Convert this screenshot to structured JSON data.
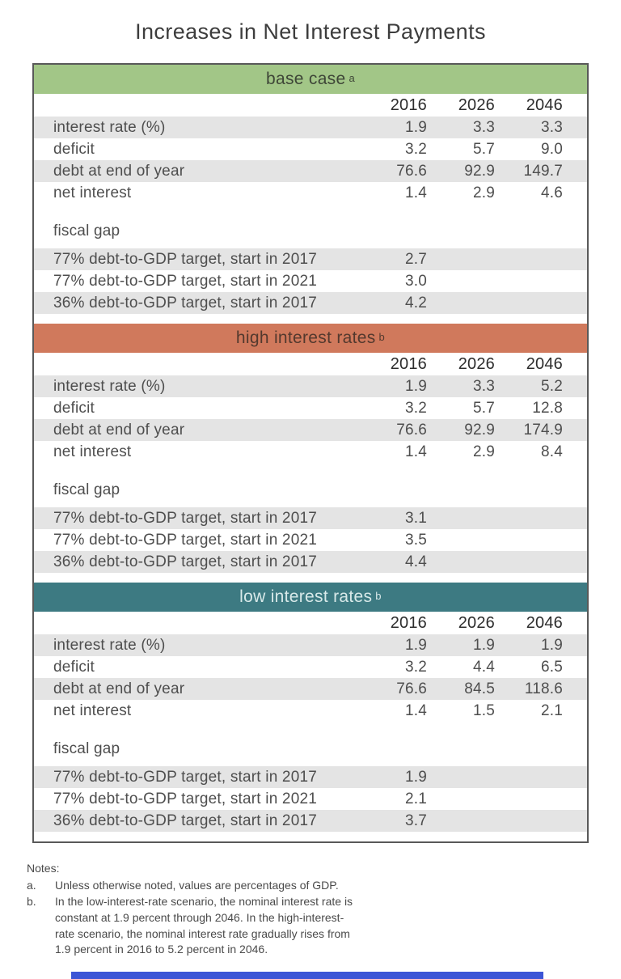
{
  "title": "Increases in Net Interest Payments",
  "years": [
    "2016",
    "2026",
    "2046"
  ],
  "chart_data": {
    "type": "table",
    "title": "Increases in Net Interest Payments",
    "columns": [
      "",
      "2016",
      "2026",
      "2046"
    ],
    "sections": [
      {
        "header": "base case",
        "note_ref": "a",
        "header_bg": "#a2c687",
        "header_text_color": "#3e4637",
        "rows": [
          {
            "label": "interest rate (%)",
            "values": [
              "1.9",
              "3.3",
              "3.3"
            ]
          },
          {
            "label": "deficit",
            "values": [
              "3.2",
              "5.7",
              "9.0"
            ]
          },
          {
            "label": "debt at end of year",
            "values": [
              "76.6",
              "92.9",
              "149.7"
            ]
          },
          {
            "label": "net interest",
            "values": [
              "1.4",
              "2.9",
              "4.6"
            ]
          }
        ],
        "fiscal_gap_label": "fiscal gap",
        "fiscal_gap_rows": [
          {
            "label": "77% debt-to-GDP target, start in 2017",
            "value": "2.7"
          },
          {
            "label": "77% debt-to-GDP target, start in 2021",
            "value": "3.0"
          },
          {
            "label": "36% debt-to-GDP target, start in 2017",
            "value": "4.2"
          }
        ]
      },
      {
        "header": "high interest rates",
        "note_ref": "b",
        "header_bg": "#d0795c",
        "header_text_color": "#53392e",
        "rows": [
          {
            "label": "interest rate (%)",
            "values": [
              "1.9",
              "3.3",
              "5.2"
            ]
          },
          {
            "label": "deficit",
            "values": [
              "3.2",
              "5.7",
              "12.8"
            ]
          },
          {
            "label": "debt at end of year",
            "values": [
              "76.6",
              "92.9",
              "174.9"
            ]
          },
          {
            "label": "net interest",
            "values": [
              "1.4",
              "2.9",
              "8.4"
            ]
          }
        ],
        "fiscal_gap_label": "fiscal gap",
        "fiscal_gap_rows": [
          {
            "label": "77% debt-to-GDP target, start in 2017",
            "value": "3.1"
          },
          {
            "label": "77% debt-to-GDP target, start in 2021",
            "value": "3.5"
          },
          {
            "label": "36% debt-to-GDP target, start in 2017",
            "value": "4.4"
          }
        ]
      },
      {
        "header": "low interest rates",
        "note_ref": "b",
        "header_bg": "#3d7a82",
        "header_text_color": "#d8e9e9",
        "rows": [
          {
            "label": "interest rate (%)",
            "values": [
              "1.9",
              "1.9",
              "1.9"
            ]
          },
          {
            "label": "deficit",
            "values": [
              "3.2",
              "4.4",
              "6.5"
            ]
          },
          {
            "label": "debt at end of year",
            "values": [
              "76.6",
              "84.5",
              "118.6"
            ]
          },
          {
            "label": "net interest",
            "values": [
              "1.4",
              "1.5",
              "2.1"
            ]
          }
        ],
        "fiscal_gap_label": "fiscal gap",
        "fiscal_gap_rows": [
          {
            "label": "77% debt-to-GDP target, start in 2017",
            "value": "1.9"
          },
          {
            "label": "77% debt-to-GDP target, start in 2021",
            "value": "2.1"
          },
          {
            "label": "36% debt-to-GDP target, start in 2017",
            "value": "3.7"
          }
        ]
      }
    ]
  },
  "notes": {
    "heading": "Notes:",
    "items": [
      {
        "marker": "a.",
        "text": "Unless otherwise noted, values are percentages of GDP."
      },
      {
        "marker": "b.",
        "text": "In the low-interest-rate scenario, the nominal interest rate is constant at 1.9 percent through 2046. In the high-interest-rate scenario, the nominal interest rate gradually rises from 1.9 percent in 2016 to 5.2 percent in 2046."
      }
    ]
  },
  "colors": {
    "row_stripe": "#e4e4e4",
    "table_border": "#595959",
    "body_text": "#4e4e4e",
    "year_header_text": "#2d2d2d",
    "base_case_header_bg": "#a2c687",
    "high_rates_header_bg": "#d0795c",
    "low_rates_header_bg": "#3d7a82",
    "footer_bar": "#3c55d6"
  }
}
